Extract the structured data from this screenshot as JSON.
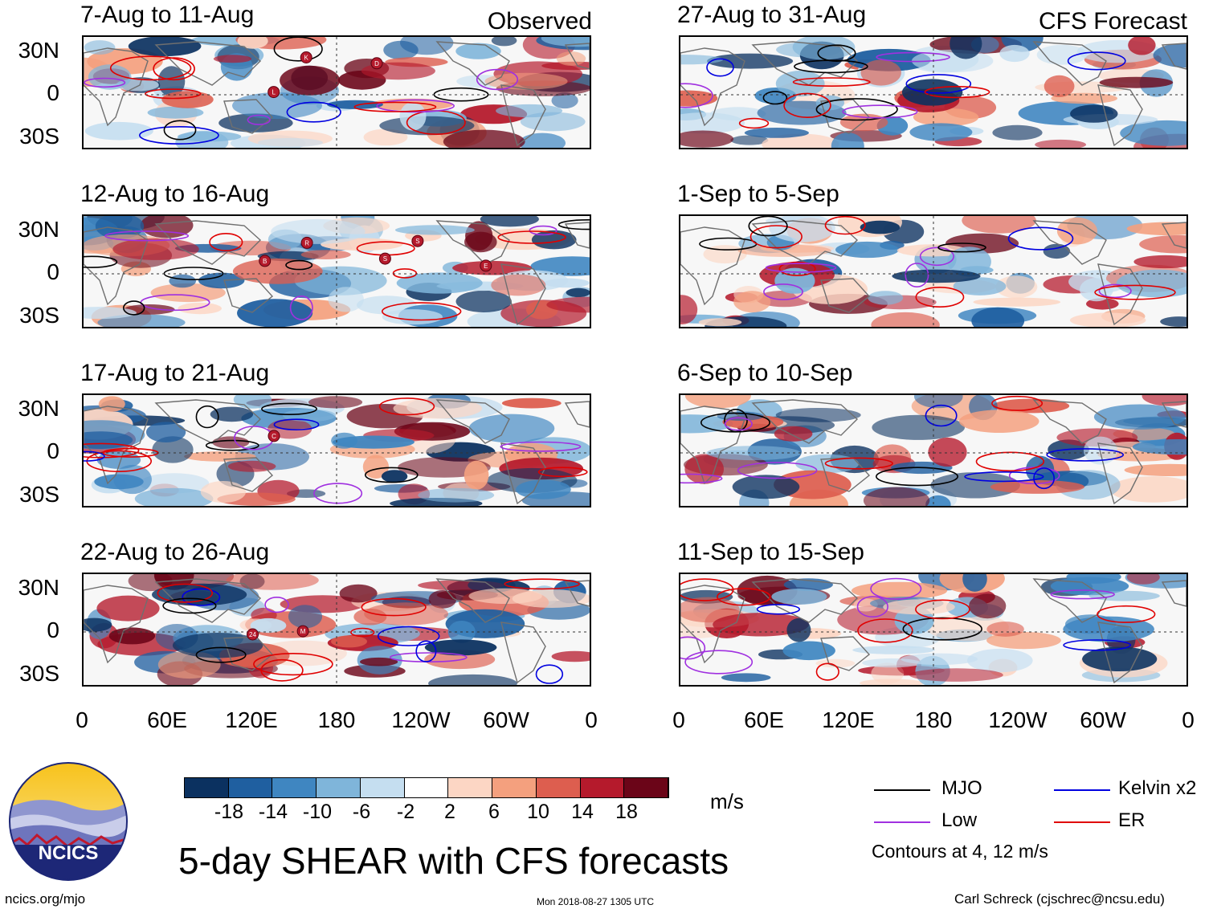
{
  "header": {
    "observed_label": "Observed",
    "forecast_label": "CFS Forecast"
  },
  "panels": {
    "left": [
      {
        "title": "7-Aug to 11-Aug",
        "storms": [
          "L",
          "K",
          "D"
        ]
      },
      {
        "title": "12-Aug to 16-Aug",
        "storms": [
          "B",
          "R",
          "S",
          "S",
          "E"
        ]
      },
      {
        "title": "17-Aug to 21-Aug",
        "storms": [
          "C"
        ]
      },
      {
        "title": "22-Aug to 26-Aug",
        "storms": [
          "24",
          "M"
        ]
      }
    ],
    "right": [
      {
        "title": "27-Aug to 31-Aug"
      },
      {
        "title": "1-Sep to 5-Sep"
      },
      {
        "title": "6-Sep to 10-Sep"
      },
      {
        "title": "11-Sep to 15-Sep"
      }
    ]
  },
  "axes": {
    "lat_labels": [
      "30N",
      "0",
      "30S"
    ],
    "lon_labels": [
      "0",
      "60E",
      "120E",
      "180",
      "120W",
      "60W",
      "0"
    ]
  },
  "colorbar": {
    "unit": "m/s",
    "tick_labels": [
      "-18",
      "-14",
      "-10",
      "-6",
      "-2",
      "2",
      "6",
      "10",
      "14",
      "18"
    ],
    "colors": [
      "#0b3160",
      "#1f5fa0",
      "#3f86c1",
      "#7fb5da",
      "#c5def0",
      "#ffffff",
      "#fcd6c4",
      "#f4a07e",
      "#dd5e4f",
      "#b51a2c",
      "#6b0518"
    ]
  },
  "legend": {
    "items": [
      {
        "label": "MJO",
        "color": "#000000"
      },
      {
        "label": "Kelvin x2",
        "color": "#0000e0"
      },
      {
        "label": "Low",
        "color": "#a030e0"
      },
      {
        "label": "ER",
        "color": "#e00000"
      }
    ],
    "note": "Contours at 4, 12 m/s"
  },
  "logo": {
    "text": "NCICS"
  },
  "footer": {
    "title": "5-day SHEAR with CFS forecasts",
    "url": "ncics.org/mjo",
    "timestamp": "Mon 2018-08-27 1305 UTC",
    "author": "Carl Schreck (cjschrec@ncsu.edu)"
  }
}
